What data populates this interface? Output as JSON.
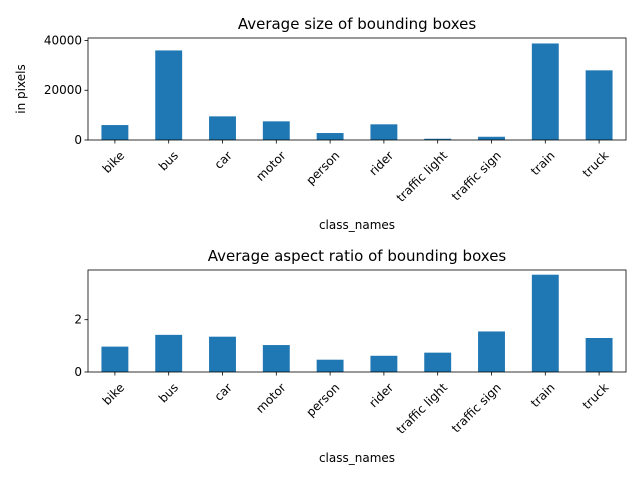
{
  "chart_data": [
    {
      "type": "bar",
      "title": "Average size of bounding boxes",
      "xlabel": "class_names",
      "ylabel": "in pixels",
      "categories": [
        "bike",
        "bus",
        "car",
        "motor",
        "person",
        "rider",
        "traffic light",
        "traffic sign",
        "train",
        "truck"
      ],
      "values": [
        6000,
        36000,
        9500,
        7500,
        2800,
        6300,
        500,
        1300,
        38800,
        28000
      ],
      "ylim": [
        0,
        41000
      ],
      "yticks": [
        0,
        20000,
        40000
      ],
      "bar_color": "#1f77b4",
      "grid": false,
      "legend": "none"
    },
    {
      "type": "bar",
      "title": "Average aspect ratio of bounding boxes",
      "xlabel": "class_names",
      "ylabel": "",
      "categories": [
        "bike",
        "bus",
        "car",
        "motor",
        "person",
        "rider",
        "traffic light",
        "traffic sign",
        "train",
        "truck"
      ],
      "values": [
        0.97,
        1.42,
        1.35,
        1.03,
        0.47,
        0.62,
        0.74,
        1.55,
        3.72,
        1.3
      ],
      "ylim": [
        0,
        3.9
      ],
      "yticks": [
        0,
        2
      ],
      "bar_color": "#1f77b4",
      "grid": false,
      "legend": "none"
    }
  ]
}
